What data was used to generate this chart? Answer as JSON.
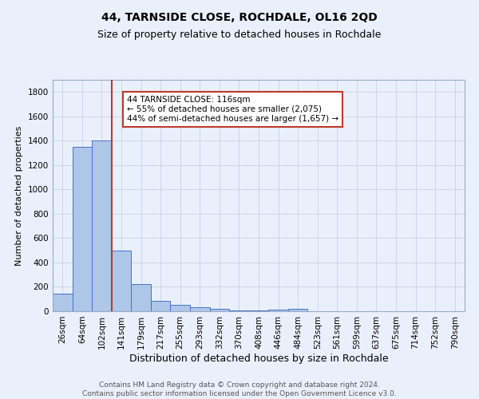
{
  "title": "44, TARNSIDE CLOSE, ROCHDALE, OL16 2QD",
  "subtitle": "Size of property relative to detached houses in Rochdale",
  "xlabel": "Distribution of detached houses by size in Rochdale",
  "ylabel": "Number of detached properties",
  "footer_line1": "Contains HM Land Registry data © Crown copyright and database right 2024.",
  "footer_line2": "Contains public sector information licensed under the Open Government Licence v3.0.",
  "bin_labels": [
    "26sqm",
    "64sqm",
    "102sqm",
    "141sqm",
    "179sqm",
    "217sqm",
    "255sqm",
    "293sqm",
    "332sqm",
    "370sqm",
    "408sqm",
    "446sqm",
    "484sqm",
    "523sqm",
    "561sqm",
    "599sqm",
    "637sqm",
    "675sqm",
    "714sqm",
    "752sqm",
    "790sqm"
  ],
  "bar_values": [
    145,
    1350,
    1400,
    500,
    225,
    85,
    50,
    30,
    20,
    5,
    5,
    10,
    20,
    0,
    0,
    0,
    0,
    0,
    0,
    0,
    0
  ],
  "bar_color": "#aec6e8",
  "bar_edge_color": "#4472c4",
  "bg_color": "#eaf0fb",
  "grid_color": "#c8d0e0",
  "vline_x": 2.5,
  "vline_color": "#c0392b",
  "annotation_text": "44 TARNSIDE CLOSE: 116sqm\n← 55% of detached houses are smaller (2,075)\n44% of semi-detached houses are larger (1,657) →",
  "annotation_box_color": "white",
  "annotation_box_edge": "#c0392b",
  "ylim": [
    0,
    1900
  ],
  "yticks": [
    0,
    200,
    400,
    600,
    800,
    1000,
    1200,
    1400,
    1600,
    1800
  ],
  "title_fontsize": 10,
  "subtitle_fontsize": 9,
  "xlabel_fontsize": 9,
  "ylabel_fontsize": 8,
  "tick_fontsize": 7.5,
  "annotation_fontsize": 7.5,
  "footer_fontsize": 6.5
}
